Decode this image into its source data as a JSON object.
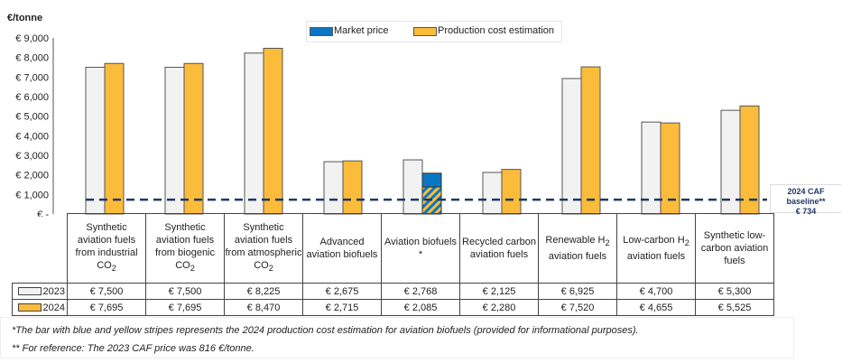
{
  "chart_data": {
    "type": "bar",
    "ylabel": "€/tonne",
    "ylim": [
      0,
      9000
    ],
    "yticks": [
      "€ -",
      "€ 1,000",
      "€ 2,000",
      "€ 3,000",
      "€ 4,000",
      "€ 5,000",
      "€ 6,000",
      "€ 7,000",
      "€ 8,000",
      "€ 9,000"
    ],
    "categories": [
      [
        {
          "t": "Synthetic aviation fuels from industrial CO"
        },
        {
          "s": "2"
        }
      ],
      [
        {
          "t": "Synthetic aviation fuels from biogenic CO"
        },
        {
          "s": "2"
        }
      ],
      [
        {
          "t": "Synthetic aviation fuels from atmospheric CO"
        },
        {
          "s": "2"
        }
      ],
      [
        {
          "t": "Advanced aviation biofuels"
        }
      ],
      [
        {
          "t": "Aviation biofuels *"
        }
      ],
      [
        {
          "t": "Recycled carbon aviation fuels"
        }
      ],
      [
        {
          "t": "Renewable H"
        },
        {
          "s": "2"
        },
        {
          "t": " aviation fuels"
        }
      ],
      [
        {
          "t": "Low-carbon H"
        },
        {
          "s": "2"
        },
        {
          "t": " aviation fuels"
        }
      ],
      [
        {
          "t": "Synthetic low-carbon aviation fuels"
        }
      ]
    ],
    "series": [
      {
        "name": "2023",
        "values": [
          7500,
          7500,
          8225,
          2675,
          2768,
          2125,
          6925,
          4700,
          5300
        ],
        "labels": [
          "€ 7,500",
          "€ 7,500",
          "€ 8,225",
          "€ 2,675",
          "€ 2,768",
          "€ 2,125",
          "€ 6,925",
          "€ 4,700",
          "€ 5,300"
        ],
        "color": "#f2f2f2"
      },
      {
        "name": "2024",
        "values": [
          7695,
          7695,
          8470,
          2715,
          2085,
          2280,
          7520,
          4655,
          5525
        ],
        "labels": [
          "€ 7,695",
          "€ 7,695",
          "€ 8,470",
          "€ 2,715",
          "€ 2,085",
          "€ 2,280",
          "€ 7,520",
          "€ 4,655",
          "€ 5,525"
        ],
        "color": "#fbbc3b"
      }
    ],
    "special": {
      "category_index": 4,
      "striped_portion_estimate": 1380,
      "market_color": "#0b77c2"
    },
    "reference_line": {
      "value": 734,
      "label_lines": [
        "2024 CAF",
        "baseline**",
        "€ 734"
      ],
      "color": "#203864"
    },
    "legend": {
      "market": "Market price",
      "production": "Production cost estimation",
      "placement": "top"
    },
    "grid": false
  },
  "footnotes": [
    "*The bar with blue and yellow stripes represents the 2024 production cost estimation for aviation biofuels (provided for informational purposes).",
    "** For reference: The 2023 CAF price was 816 €/tonne."
  ]
}
